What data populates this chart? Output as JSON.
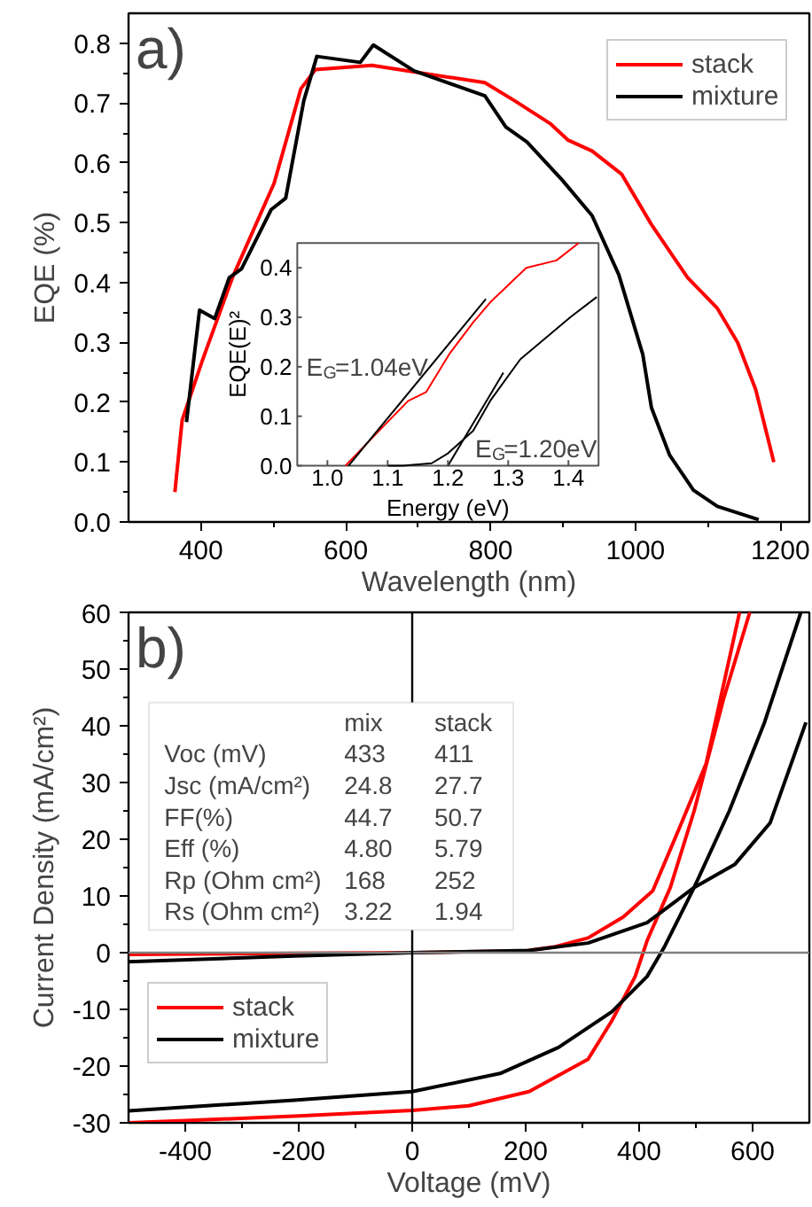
{
  "chart_data": [
    {
      "type": "line",
      "title": "a)",
      "xlabel": "Wavelength (nm)",
      "ylabel": "EQE (%)",
      "xlim": [
        300,
        1240
      ],
      "ylim": [
        0,
        0.85
      ],
      "xticks": [
        400,
        600,
        800,
        1000,
        1200
      ],
      "yticks": [
        {
          "value": 0,
          "label": "0.0"
        },
        0.1,
        0.2,
        0.3,
        0.4,
        0.5,
        0.6,
        0.7,
        0.8
      ],
      "grid": false,
      "legend": "top right",
      "marker": "none",
      "line_style": "solid",
      "series": [
        {
          "name": "stack",
          "color": "#ff0000",
          "x": [
            364,
            374,
            402,
            444,
            501,
            538,
            558,
            636,
            792,
            833,
            883,
            907,
            940,
            981,
            1022,
            1072,
            1113,
            1141,
            1166,
            1191
          ],
          "values": [
            0.05,
            0.17,
            0.27,
            0.41,
            0.566,
            0.724,
            0.756,
            0.763,
            0.734,
            0.704,
            0.665,
            0.638,
            0.62,
            0.581,
            0.497,
            0.408,
            0.357,
            0.3,
            0.221,
            0.1
          ]
        },
        {
          "name": "mixture",
          "color": "#000000",
          "x": [
            380,
            398,
            419,
            439,
            456,
            497,
            517,
            542,
            560,
            620,
            638,
            694,
            792,
            821,
            850,
            899,
            940,
            977,
            1010,
            1022,
            1047,
            1080,
            1113,
            1170
          ],
          "values": [
            0.167,
            0.354,
            0.34,
            0.408,
            0.423,
            0.522,
            0.541,
            0.704,
            0.778,
            0.768,
            0.797,
            0.754,
            0.712,
            0.66,
            0.635,
            0.571,
            0.512,
            0.413,
            0.28,
            0.191,
            0.112,
            0.053,
            0.026,
            0.004
          ]
        }
      ]
    },
    {
      "type": "line",
      "xlabel": "Energy (eV)",
      "ylabel": "EQE(E)²",
      "xlim": [
        0.95,
        1.45
      ],
      "ylim": [
        0,
        0.45
      ],
      "xticks": [
        {
          "value": 1.0,
          "label": "1.0"
        },
        1.1,
        1.2,
        1.3,
        1.4
      ],
      "yticks": [
        {
          "value": 0,
          "label": "0.0"
        },
        0.1,
        0.2,
        0.3,
        0.4
      ],
      "annotations": [
        "E$_{G}$=1.04eV",
        "E$_{G}$=1.20eV"
      ],
      "series": [
        {
          "color": "#ff0000",
          "x": [
            1.03,
            1.086,
            1.134,
            1.164,
            1.203,
            1.242,
            1.27,
            1.33,
            1.38,
            1.417
          ],
          "values": [
            0,
            0.071,
            0.131,
            0.149,
            0.227,
            0.29,
            0.33,
            0.4,
            0.415,
            0.45
          ]
        },
        {
          "color": "#000000",
          "x": [
            1.1,
            1.125,
            1.173,
            1.2,
            1.242,
            1.27,
            1.32,
            1.403,
            1.447
          ],
          "values": [
            0,
            0,
            0.005,
            0.025,
            0.071,
            0.131,
            0.215,
            0.3,
            0.341
          ]
        },
        {
          "color": "#000000",
          "x": [
            1.035,
            1.263
          ],
          "values": [
            0,
            0.337
          ]
        },
        {
          "color": "#000000",
          "x": [
            1.2,
            1.292
          ],
          "values": [
            0,
            0.188
          ]
        }
      ]
    },
    {
      "type": "line",
      "title": "b)",
      "xlabel": "Voltage (mV)",
      "ylabel": "Current Density (mA/cm²)",
      "xlim": [
        -500,
        700
      ],
      "ylim": [
        -30,
        60
      ],
      "xticks": [
        -400,
        -200,
        0,
        200,
        400,
        600
      ],
      "yticks": [
        -30,
        -20,
        -10,
        0,
        10,
        20,
        30,
        40,
        50,
        60
      ],
      "grid": false,
      "legend": "bottom left",
      "marker": "none",
      "line_style": "solid",
      "ref_lines": [
        {
          "axis": "y",
          "value": 0,
          "color": "#808080"
        },
        {
          "axis": "x",
          "value": 0,
          "color": "#000000"
        }
      ],
      "annotations": [
        "mix",
        "stack",
        "Voc (mV)",
        "433",
        "411",
        "Jsc (mA/cm²)",
        "24.8",
        "27.7",
        "FF(%)",
        "44.7",
        "50.7",
        "Eff (%)",
        "4.80",
        "5.79",
        "Rp (Ohm cm²)",
        "168",
        "252",
        "Rs (Ohm cm²)",
        "3.22",
        "1.94"
      ],
      "series": [
        {
          "name": "stack",
          "color": "#ff0000",
          "x": [
            -500,
            -400,
            -200,
            0,
            100,
            206,
            310,
            352,
            393,
            414,
            455,
            497,
            549,
            595
          ],
          "values": [
            -30,
            -29.6,
            -28.8,
            -27.8,
            -27,
            -24.5,
            -18.8,
            -12,
            -4.2,
            2.1,
            11.5,
            25,
            44.8,
            60
          ]
        },
        {
          "color": "#ff0000",
          "x": [
            -500,
            -200,
            0,
            200,
            250,
            310,
            372,
            424,
            466,
            518,
            577
          ],
          "values": [
            -0.3,
            -0.1,
            0,
            0.3,
            1,
            2.6,
            6.3,
            10.9,
            20.8,
            33.3,
            60
          ]
        },
        {
          "name": "mixture",
          "color": "#000000",
          "x": [
            -500,
            -208,
            0,
            155,
            258,
            352,
            414,
            445,
            497,
            559,
            621,
            685
          ],
          "values": [
            -27.9,
            -26,
            -24.5,
            -21.3,
            -16.7,
            -10.4,
            -4.2,
            1.1,
            11.5,
            25,
            40.6,
            60
          ]
        },
        {
          "color": "#000000",
          "x": [
            -500,
            -208,
            0,
            206,
            310,
            414,
            497,
            569,
            631,
            694
          ],
          "values": [
            -1.6,
            -0.6,
            0,
            0.4,
            1.7,
            5.3,
            11.5,
            15.6,
            22.9,
            40.6
          ]
        }
      ]
    }
  ]
}
